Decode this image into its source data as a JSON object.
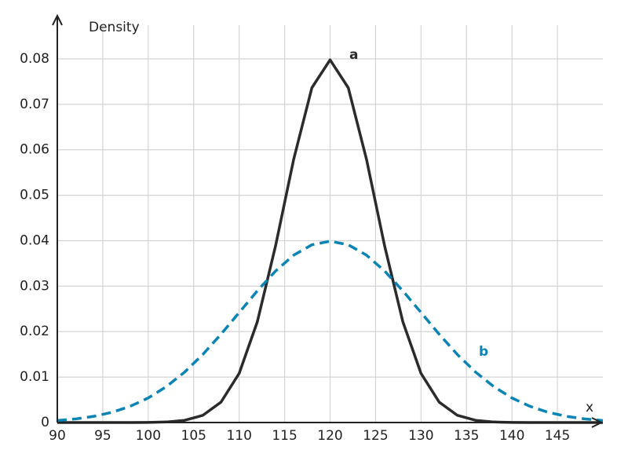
{
  "chart_data": {
    "type": "line",
    "x_label": "x",
    "y_label": "Density",
    "x": [
      90,
      92,
      94,
      96,
      98,
      100,
      102,
      104,
      106,
      108,
      110,
      112,
      114,
      116,
      118,
      120,
      122,
      124,
      126,
      128,
      130,
      132,
      134,
      136,
      138,
      140,
      142,
      144,
      146,
      148,
      150
    ],
    "series": [
      {
        "name": "a",
        "color": "#2b2b2b",
        "dashed": false,
        "values": [
          0,
          0,
          0,
          0,
          1e-05,
          3e-05,
          0.00012,
          0.00048,
          0.00158,
          0.00448,
          0.0108,
          0.02218,
          0.03884,
          0.05794,
          0.07365,
          0.07979,
          0.07365,
          0.05794,
          0.03884,
          0.02218,
          0.0108,
          0.00448,
          0.00158,
          0.00048,
          0.00012,
          3e-05,
          1e-05,
          0,
          0,
          0,
          0
        ]
      },
      {
        "name": "b",
        "color": "#0a84b5",
        "dashed": true,
        "values": [
          0.00044,
          0.00079,
          0.00136,
          0.00224,
          0.00355,
          0.0054,
          0.0079,
          0.01109,
          0.01497,
          0.01942,
          0.0242,
          0.02897,
          0.03332,
          0.03683,
          0.0391,
          0.03989,
          0.0391,
          0.03683,
          0.03332,
          0.02897,
          0.0242,
          0.01942,
          0.01497,
          0.01109,
          0.0079,
          0.0054,
          0.00355,
          0.00224,
          0.00136,
          0.00079,
          0.00044
        ]
      }
    ],
    "xlim": [
      90,
      150
    ],
    "xticks": [
      90,
      95,
      100,
      105,
      110,
      115,
      120,
      125,
      130,
      135,
      140,
      145
    ],
    "ylim": [
      0,
      0.0895
    ],
    "yticks": [
      0,
      0.01,
      0.02,
      0.03,
      0.04,
      0.05,
      0.06,
      0.07,
      0.08
    ],
    "grid": true
  }
}
